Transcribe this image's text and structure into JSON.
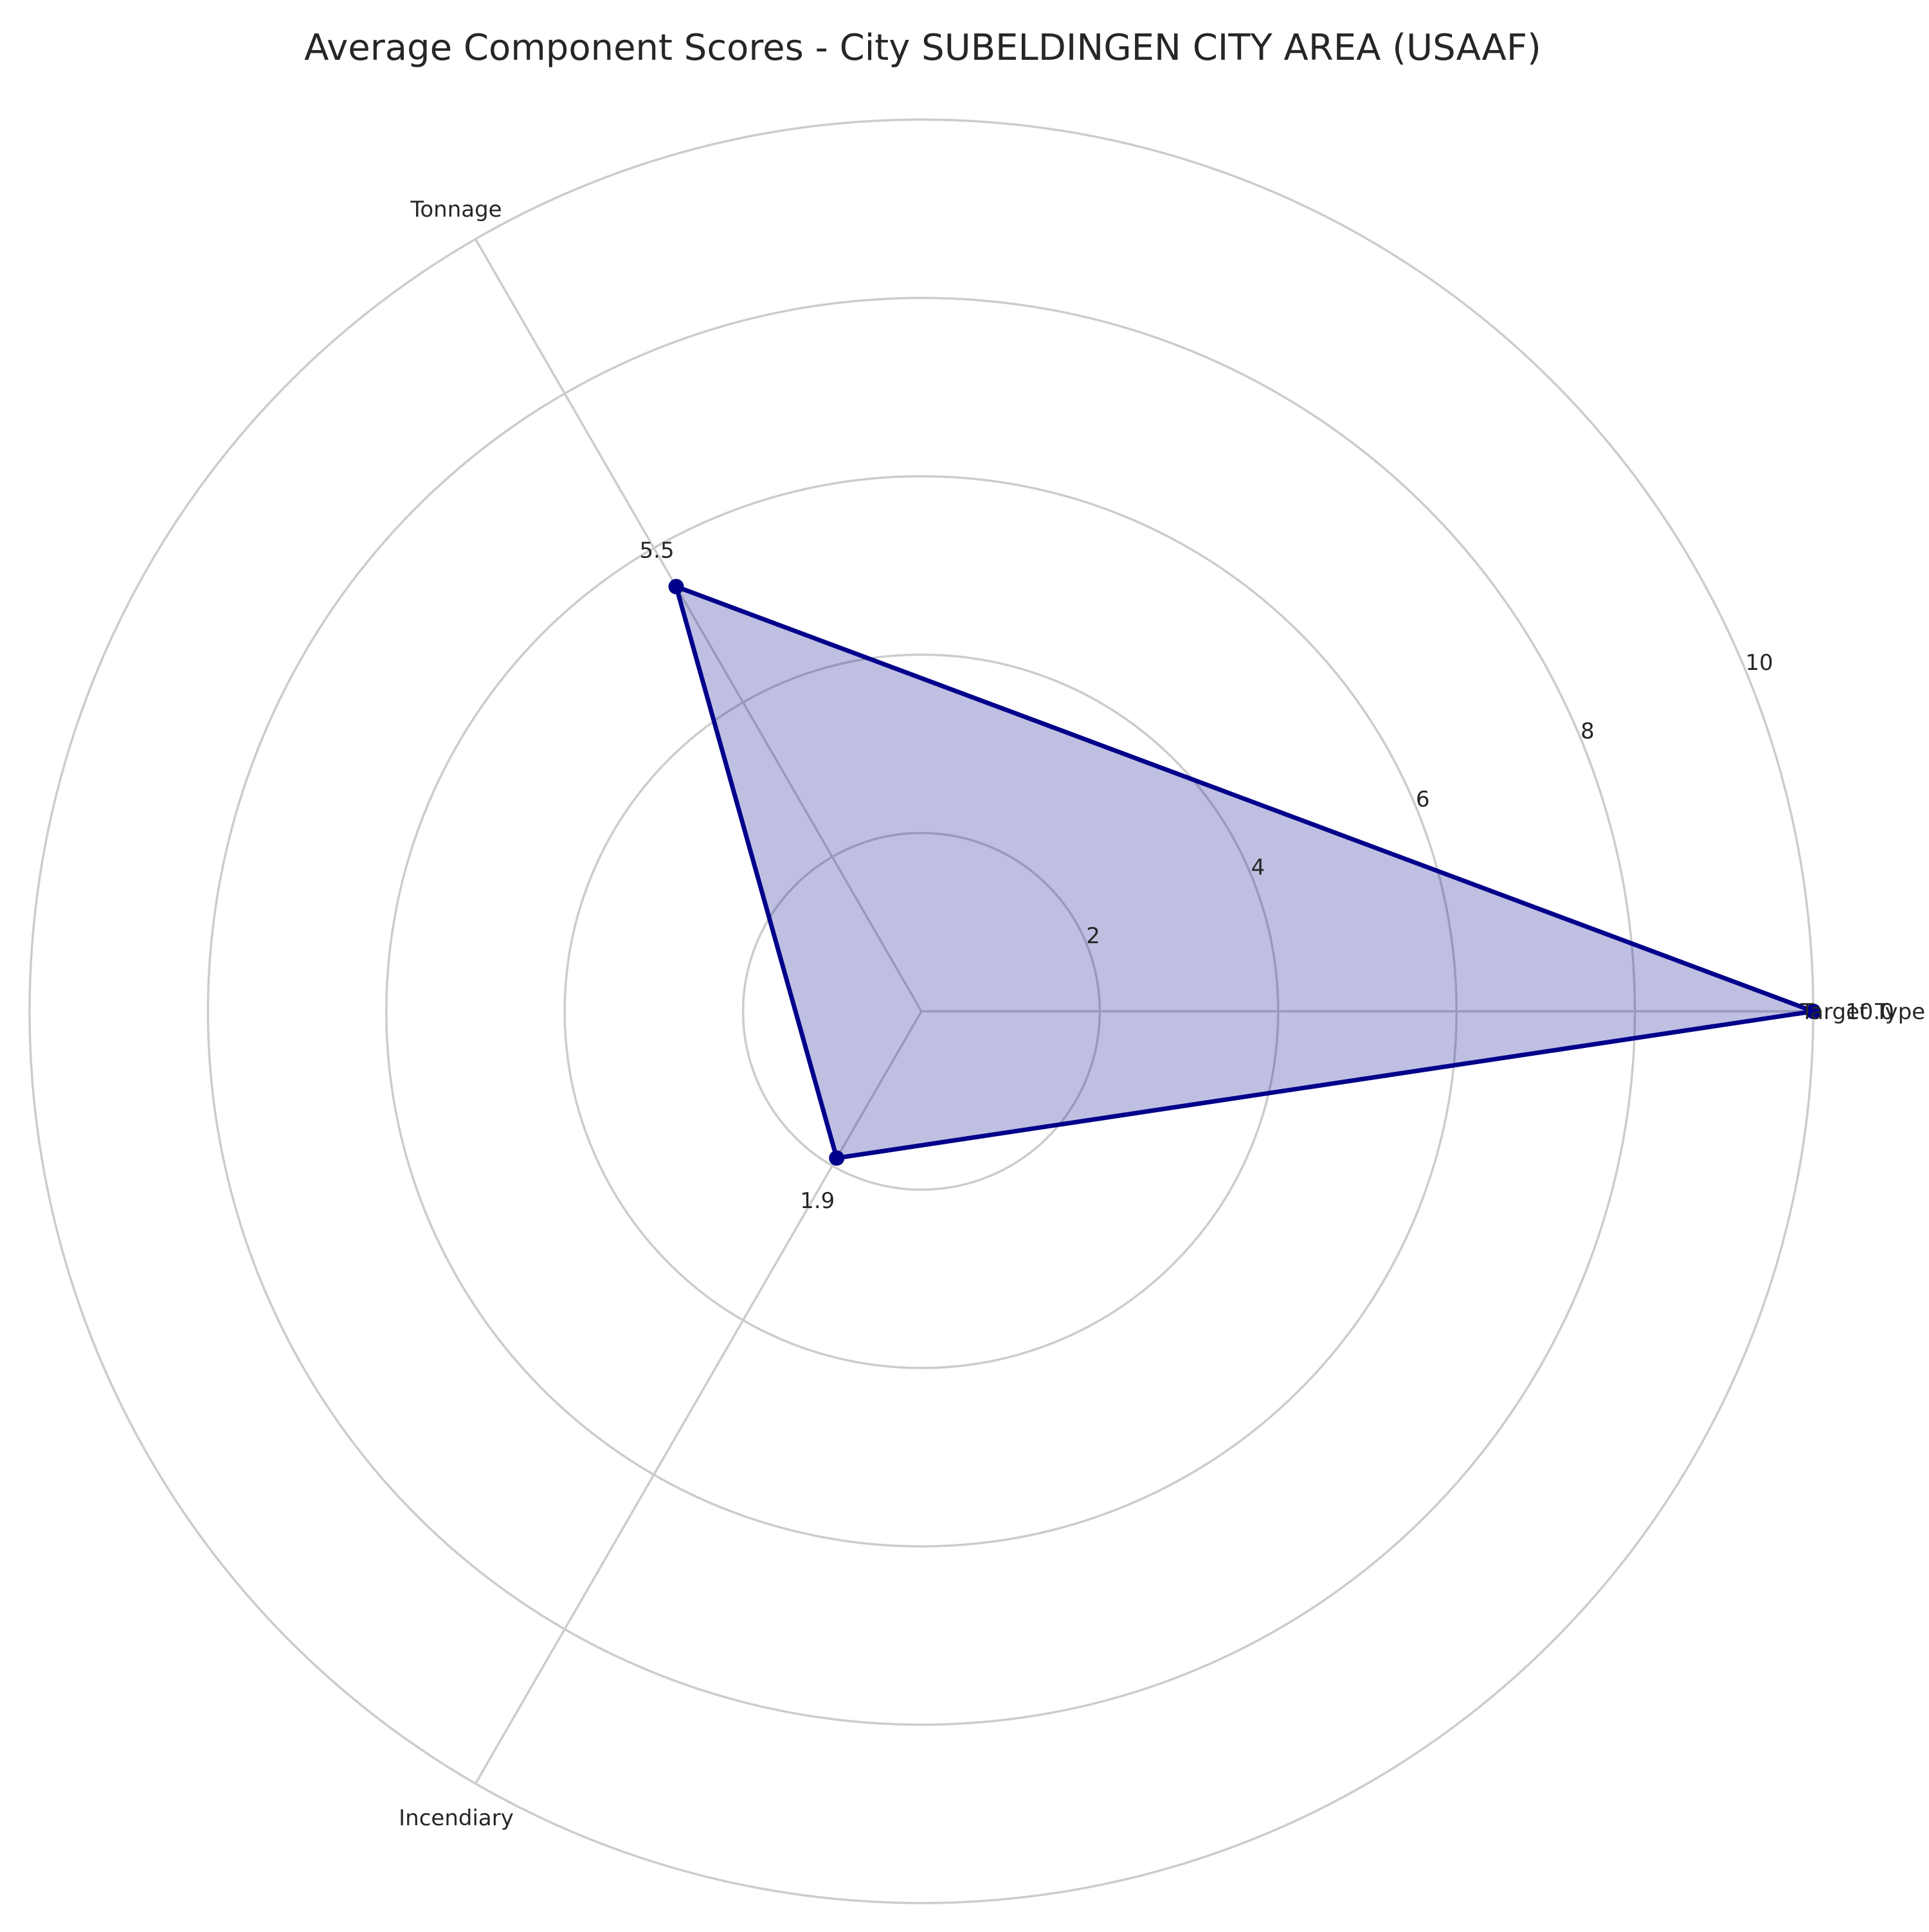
{
  "chart_data": {
    "type": "radar",
    "title": "Average Component Scores - City SUBELDINGEN CITY AREA (USAAF)",
    "categories": [
      "Target Type",
      "Tonnage",
      "Incendiary"
    ],
    "values": [
      10.0,
      5.5,
      1.9
    ],
    "value_labels": [
      "10.0",
      "5.5",
      "1.9"
    ],
    "rlim": [
      0,
      10
    ],
    "radial_ticks": [
      2,
      4,
      6,
      8,
      10
    ],
    "radial_tick_labels": [
      "2",
      "4",
      "6",
      "8",
      "10"
    ],
    "grid": true,
    "colors": {
      "line": "#00008b",
      "fill": "#00008b",
      "fill_opacity": 0.25,
      "grid": "#cccccc"
    }
  }
}
